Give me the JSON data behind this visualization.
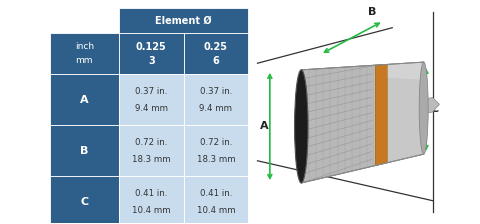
{
  "header_color": "#2E5F8A",
  "header_text_color": "#FFFFFF",
  "data_bg_color": "#C8DCEE",
  "row_label_color": "#2E5F8A",
  "element_header": "Element Ø",
  "col1_inch": "0.125",
  "col1_mm": "3",
  "col2_inch": "0.25",
  "col2_mm": "6",
  "inch_mm_label": [
    "inch",
    "mm"
  ],
  "rows": [
    {
      "label": "A",
      "col1": [
        "0.37 in.",
        "9.4 mm"
      ],
      "col2": [
        "0.37 in.",
        "9.4 mm"
      ]
    },
    {
      "label": "B",
      "col1": [
        "0.72 in.",
        "18.3 mm"
      ],
      "col2": [
        "0.72 in.",
        "18.3 mm"
      ]
    },
    {
      "label": "C",
      "col1": [
        "0.41 in.",
        "10.4 mm"
      ],
      "col2": [
        "0.41 in.",
        "10.4 mm"
      ]
    }
  ],
  "arrow_color": "#22BB44",
  "line_color": "#333333",
  "background_color": "#FFFFFF",
  "body_gray": "#C8C8C8",
  "body_light": "#DCDCDC",
  "body_dark": "#A8A8A8",
  "thread_color": "#B8B8B8",
  "band_color": "#C87820",
  "black_face": "#1C1C1C",
  "connector_gray": "#BBBBBB"
}
